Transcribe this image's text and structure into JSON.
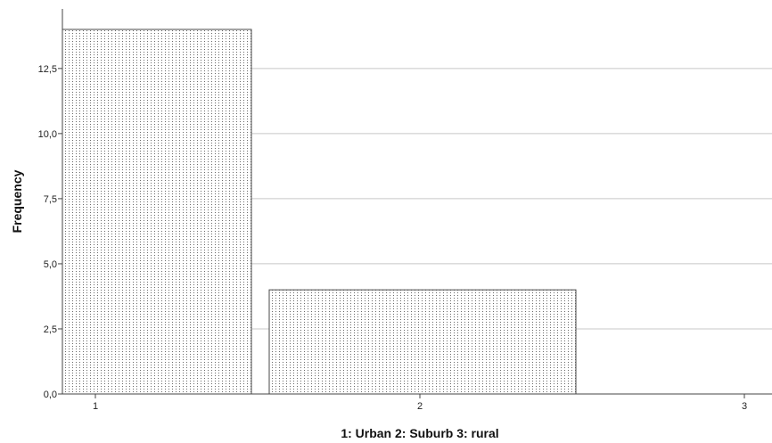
{
  "chart_data": {
    "type": "bar",
    "categories": [
      "1",
      "2",
      "3"
    ],
    "values": [
      14,
      4,
      0
    ],
    "xlabel": "1: Urban 2: Suburb 3: rural",
    "ylabel": "Frequency",
    "ylim": [
      0,
      14
    ],
    "yticks": [
      "0,0",
      "2,5",
      "5,0",
      "7,5",
      "10,0",
      "12,5"
    ],
    "ytick_values": [
      0,
      2.5,
      5,
      7.5,
      10,
      12.5
    ],
    "grid": true,
    "colors": {
      "bar_fill": "#ffffff",
      "bar_stroke": "#4a4a4a",
      "dot": "#555555",
      "grid": "#c8c8c8",
      "axis": "#444444"
    }
  }
}
